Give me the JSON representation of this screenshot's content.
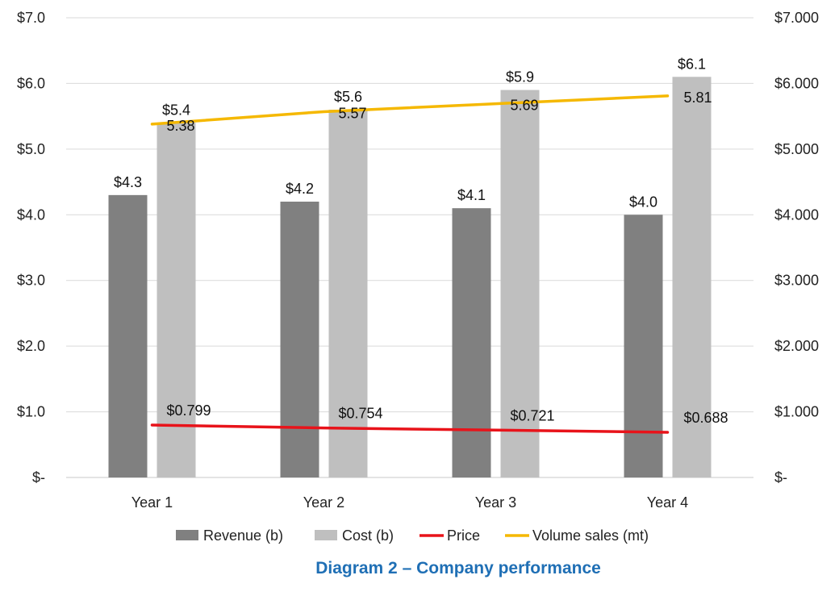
{
  "chart_data": {
    "type": "bar",
    "categories": [
      "Year 1",
      "Year 2",
      "Year 3",
      "Year 4"
    ],
    "series": [
      {
        "name": "Revenue (b)",
        "type": "bar",
        "axis": "left",
        "values": [
          4.3,
          4.2,
          4.1,
          4.0
        ],
        "labels": [
          "$4.3",
          "$4.2",
          "$4.1",
          "$4.0"
        ],
        "color": "#808080"
      },
      {
        "name": "Cost (b)",
        "type": "bar",
        "axis": "left",
        "values": [
          5.4,
          5.6,
          5.9,
          6.1
        ],
        "labels": [
          "$5.4",
          "$5.6",
          "$5.9",
          "$6.1"
        ],
        "color": "#bfbfbf"
      },
      {
        "name": "Price",
        "type": "line",
        "axis": "right",
        "values": [
          0.799,
          0.754,
          0.721,
          0.688
        ],
        "labels": [
          "$0.799",
          "$0.754",
          "$0.721",
          "$0.688"
        ],
        "color": "#e8131a"
      },
      {
        "name": "Volume sales (mt)",
        "type": "line",
        "axis": "left",
        "values": [
          5.38,
          5.57,
          5.69,
          5.81
        ],
        "labels": [
          "5.38",
          "5.57",
          "5.69",
          "5.81"
        ],
        "color": "#f5b800"
      }
    ],
    "yaxis_left": {
      "ylim": [
        0,
        7
      ],
      "ticks": [
        0,
        1,
        2,
        3,
        4,
        5,
        6,
        7
      ],
      "tick_labels": [
        "$-",
        "$1.0",
        "$2.0",
        "$3.0",
        "$4.0",
        "$5.0",
        "$6.0",
        "$7.0"
      ]
    },
    "yaxis_right": {
      "ylim": [
        0,
        7
      ],
      "ticks": [
        0,
        1,
        2,
        3,
        4,
        5,
        6,
        7
      ],
      "tick_labels": [
        "$-",
        "$1.000",
        "$2.000",
        "$3.000",
        "$4.000",
        "$5.000",
        "$6.000",
        "$7.000"
      ]
    },
    "grid": true,
    "legend": "bottom",
    "caption": "Diagram 2 – Company performance"
  }
}
